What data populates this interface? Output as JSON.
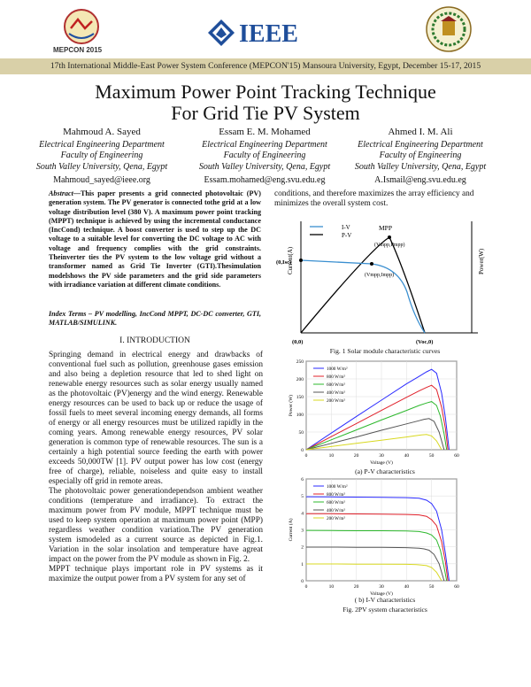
{
  "banner": {
    "conference": "17th International Middle-East Power System Conference (MEPCON'15) Mansoura University, Egypt, December 15-17, 2015",
    "mepcon_label": "MEPCON 2015",
    "ieee_label": "IEEE"
  },
  "paper": {
    "title_line1": "Maximum Power Point Tracking Technique",
    "title_line2": "For Grid Tie PV System",
    "authors": [
      {
        "name": "Mahmoud A. Sayed",
        "dept": "Electrical Engineering Department",
        "faculty": "Faculty of Engineering",
        "univ": "South Valley University, Qena, Egypt",
        "email": "Mahmoud_sayed@ieee.org"
      },
      {
        "name": "Essam E. M. Mohamed",
        "dept": "Electrical Engineering Department",
        "faculty": "Faculty of Engineering",
        "univ": "South Valley University, Qena, Egypt",
        "email": "Essam.mohamed@eng.svu.edu.eg"
      },
      {
        "name": "Ahmed I. M. Ali",
        "dept": "Electrical Engineering Department",
        "faculty": "Faculty of Engineering",
        "univ": "South Valley University, Qena, Egypt",
        "email": "A.Ismail@eng.svu.edu.eg"
      }
    ],
    "abstract_label": "Abstract",
    "abstract": "—This paper presents a grid connected photovoltaic (PV) generation system. The PV generator is connected tothe grid at a low voltage distribution level (380 V). A maximum power point tracking (MPPT) technique is achieved by using the incremental conductance (IncCond) technique. A boost converter is used to step up the DC voltage to a suitable level for converting the DC voltage to AC with voltage and frequency complies with the grid constraints. Theinverter ties the PV system to the low voltage grid without a transformer named as Grid Tie Inverter (GTI).Thesimulation modelshows the PV side parameters and the grid side parameters with irradiance variation at different climate conditions.",
    "index_terms": "Index Terms – PV modelling, IncCond MPPT, DC-DC converter, GTI, MATLAB/SIMULINK.",
    "section_heading": "I.     INTRODUCTION",
    "intro_p1": "Springing demand in electrical energy and drawbacks of conventional fuel such as pollution, greenhouse gases emission and also being a depletion resource that led to shed light on renewable energy resources such as solar energy usually named as the photovoltaic (PV)energy and the wind energy. Renewable energy resources can be used to back up or reduce the usage of fossil fuels to meet several incoming energy demands, all forms of energy or all energy resources must be utilized rapidly in the coming years. Among renewable energy resources, PV solar generation is common type of renewable resources. The sun is a certainly a high potential source feeding the earth with power exceeds 50,000TW [1]. PV output power has low cost (energy free of charge), reliable, noiseless and quite easy to install especially off grid in remote areas.",
    "intro_p2": "The photovoltaic power generationdependson ambient weather conditions (temperature and irradiance). To extract the maximum power from PV module, MPPT technique must be used to keep system operation at maximum power point (MPP) regardless weather condition variation.The PV generation system ismodeled as a current source as depicted in Fig.1. Variation in the solar insolation and temperature have agreat impact on the power from the PV module as shown in Fig. 2.",
    "intro_p3": "MPPT technique plays important role in PV systems as it maximize the output power from a PV system for any set of",
    "right_top": "conditions, and therefore maximizes the array efficiency and minimizes the overall system cost."
  },
  "fig1": {
    "caption": "Fig. 1 Solar module characteristic curves",
    "ylabel_left": "Current(A)",
    "ylabel_right": "Power(W)",
    "legend_iv": "I-V",
    "legend_pv": "P-V",
    "mpp": "MPP",
    "vmpp_pmpp": "(Vmpp,Pmpp)",
    "vmpp_impp": "(Vmpp,Impp)",
    "isc": "(0,Isc)",
    "origin": "(0,0)",
    "voc": "(Voc,0)"
  },
  "fig2": {
    "caption": "Fig. 2PV system characteristics",
    "sub_a": "(a) P-V characteristics",
    "sub_b": "( b) I-V characteristics",
    "colors": [
      "#2a2aff",
      "#e0202a",
      "#2db82d",
      "#555555",
      "#d8d820"
    ],
    "irradiance_labels": [
      "1000 W/m²",
      "800 W/m²",
      "600 W/m²",
      "400 W/m²",
      "200 W/m²"
    ]
  },
  "chart_data": [
    {
      "type": "line",
      "title": "(a) P-V characteristics",
      "xlabel": "Voltage (V)",
      "ylabel": "Power (W)",
      "xlim": [
        0,
        60
      ],
      "ylim": [
        0,
        250
      ],
      "xticks": [
        0,
        10,
        20,
        30,
        40,
        50,
        60
      ],
      "yticks": [
        0,
        50,
        100,
        150,
        200,
        250
      ],
      "series": [
        {
          "name": "1000 W/m²",
          "x": [
            0,
            10,
            20,
            30,
            40,
            45,
            48,
            50,
            52,
            54,
            55.5,
            57
          ],
          "y": [
            0,
            47,
            94,
            140,
            186,
            207,
            220,
            227,
            216,
            160,
            90,
            0
          ]
        },
        {
          "name": "800 W/m²",
          "x": [
            0,
            10,
            20,
            30,
            40,
            45,
            48,
            50,
            52,
            54,
            55.5,
            56.5
          ],
          "y": [
            0,
            37,
            74,
            111,
            148,
            166,
            176,
            182,
            170,
            120,
            60,
            0
          ]
        },
        {
          "name": "600 W/m²",
          "x": [
            0,
            10,
            20,
            30,
            40,
            45,
            48,
            50,
            52,
            53.5,
            55,
            56
          ],
          "y": [
            0,
            28,
            56,
            84,
            111,
            125,
            132,
            136,
            125,
            95,
            45,
            0
          ]
        },
        {
          "name": "400 W/m²",
          "x": [
            0,
            10,
            20,
            30,
            40,
            45,
            47,
            49,
            51,
            53,
            55
          ],
          "y": [
            0,
            18,
            36,
            55,
            73,
            82,
            86,
            88,
            80,
            50,
            0
          ]
        },
        {
          "name": "200 W/m²",
          "x": [
            0,
            10,
            20,
            30,
            40,
            44,
            46,
            48,
            50,
            52,
            54
          ],
          "y": [
            0,
            9,
            18,
            27,
            36,
            40,
            42,
            43,
            39,
            25,
            0
          ]
        }
      ]
    },
    {
      "type": "line",
      "title": "( b) I-V characteristics",
      "xlabel": "Voltage (V)",
      "ylabel": "Current (A)",
      "xlim": [
        0,
        60
      ],
      "ylim": [
        0,
        6
      ],
      "xticks": [
        0,
        10,
        20,
        30,
        40,
        50,
        60
      ],
      "yticks": [
        0,
        1,
        2,
        3,
        4,
        5,
        6
      ],
      "series": [
        {
          "name": "1000 W/m²",
          "x": [
            0,
            10,
            20,
            30,
            40,
            45,
            48,
            50,
            52,
            54,
            55.5,
            57
          ],
          "y": [
            4.95,
            4.94,
            4.93,
            4.92,
            4.9,
            4.86,
            4.75,
            4.55,
            4.1,
            3.0,
            1.6,
            0
          ]
        },
        {
          "name": "800 W/m²",
          "x": [
            0,
            10,
            20,
            30,
            40,
            45,
            48,
            50,
            52,
            54,
            55.5,
            56.5
          ],
          "y": [
            3.95,
            3.95,
            3.94,
            3.93,
            3.91,
            3.88,
            3.8,
            3.6,
            3.25,
            2.3,
            1.1,
            0
          ]
        },
        {
          "name": "600 W/m²",
          "x": [
            0,
            10,
            20,
            30,
            40,
            45,
            48,
            50,
            52,
            53.5,
            55,
            56
          ],
          "y": [
            2.97,
            2.96,
            2.95,
            2.95,
            2.93,
            2.9,
            2.82,
            2.7,
            2.4,
            1.8,
            0.8,
            0
          ]
        },
        {
          "name": "400 W/m²",
          "x": [
            0,
            10,
            20,
            30,
            40,
            45,
            47,
            49,
            51,
            53,
            55
          ],
          "y": [
            1.98,
            1.98,
            1.97,
            1.97,
            1.95,
            1.92,
            1.88,
            1.8,
            1.55,
            1.0,
            0
          ]
        },
        {
          "name": "200 W/m²",
          "x": [
            0,
            10,
            20,
            30,
            40,
            44,
            46,
            48,
            50,
            52,
            54
          ],
          "y": [
            0.99,
            0.99,
            0.98,
            0.98,
            0.97,
            0.95,
            0.93,
            0.89,
            0.78,
            0.5,
            0
          ]
        }
      ]
    }
  ]
}
